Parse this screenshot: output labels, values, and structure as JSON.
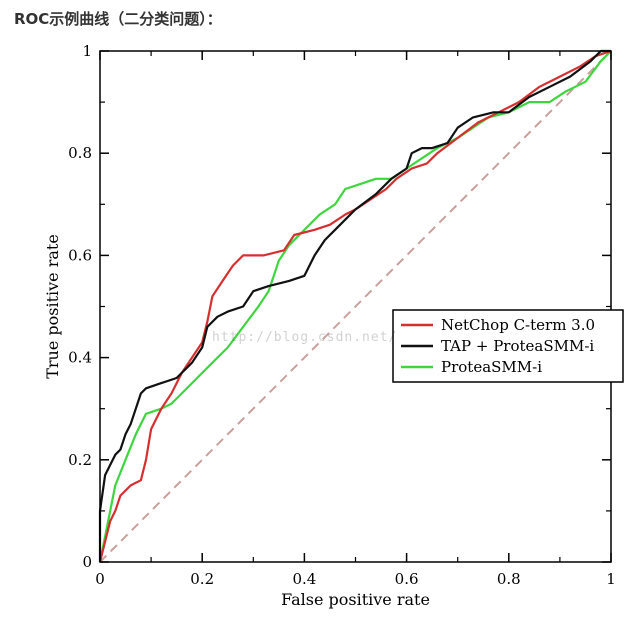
{
  "heading": "ROC示例曲线（二分类问题）：",
  "watermark": "http://blog.csdn.net/",
  "chart_data": {
    "type": "line",
    "title": "",
    "xlabel": "False positive rate",
    "ylabel": "True positive rate",
    "xlim": [
      0,
      1
    ],
    "ylim": [
      0,
      1
    ],
    "xticks": [
      0,
      0.2,
      0.4,
      0.6,
      0.8,
      1
    ],
    "yticks": [
      0,
      0.2,
      0.4,
      0.6,
      0.8,
      1
    ],
    "x_tick_labels": [
      "0",
      "0.2",
      "0.4",
      "0.6",
      "0.8",
      "1"
    ],
    "y_tick_labels": [
      "0",
      "0.2",
      "0.4",
      "0.6",
      "0.8",
      "1"
    ],
    "grid": false,
    "legend_position": "middle-right",
    "diagonal": {
      "color": "#c9a09c",
      "style": "dashed",
      "points": [
        [
          0,
          0
        ],
        [
          1,
          1
        ]
      ]
    },
    "series": [
      {
        "name": "NetChop C-term 3.0",
        "color": "#d62f2f",
        "points": [
          [
            0,
            0
          ],
          [
            0.01,
            0.04
          ],
          [
            0.02,
            0.08
          ],
          [
            0.03,
            0.1
          ],
          [
            0.04,
            0.13
          ],
          [
            0.06,
            0.15
          ],
          [
            0.08,
            0.16
          ],
          [
            0.09,
            0.2
          ],
          [
            0.1,
            0.26
          ],
          [
            0.12,
            0.3
          ],
          [
            0.14,
            0.33
          ],
          [
            0.16,
            0.37
          ],
          [
            0.18,
            0.4
          ],
          [
            0.2,
            0.43
          ],
          [
            0.21,
            0.47
          ],
          [
            0.22,
            0.52
          ],
          [
            0.24,
            0.55
          ],
          [
            0.26,
            0.58
          ],
          [
            0.28,
            0.6
          ],
          [
            0.32,
            0.6
          ],
          [
            0.36,
            0.61
          ],
          [
            0.38,
            0.64
          ],
          [
            0.42,
            0.65
          ],
          [
            0.45,
            0.66
          ],
          [
            0.48,
            0.68
          ],
          [
            0.5,
            0.69
          ],
          [
            0.53,
            0.71
          ],
          [
            0.56,
            0.73
          ],
          [
            0.58,
            0.75
          ],
          [
            0.61,
            0.77
          ],
          [
            0.64,
            0.78
          ],
          [
            0.66,
            0.8
          ],
          [
            0.7,
            0.83
          ],
          [
            0.74,
            0.86
          ],
          [
            0.78,
            0.88
          ],
          [
            0.82,
            0.9
          ],
          [
            0.86,
            0.93
          ],
          [
            0.9,
            0.95
          ],
          [
            0.94,
            0.97
          ],
          [
            0.97,
            0.99
          ],
          [
            1,
            1
          ]
        ]
      },
      {
        "name": "TAP + ProteaSMM-i",
        "color": "#111111",
        "points": [
          [
            0,
            0
          ],
          [
            0,
            0.1
          ],
          [
            0.01,
            0.17
          ],
          [
            0.02,
            0.19
          ],
          [
            0.03,
            0.21
          ],
          [
            0.04,
            0.22
          ],
          [
            0.05,
            0.25
          ],
          [
            0.06,
            0.27
          ],
          [
            0.07,
            0.3
          ],
          [
            0.08,
            0.33
          ],
          [
            0.09,
            0.34
          ],
          [
            0.12,
            0.35
          ],
          [
            0.15,
            0.36
          ],
          [
            0.18,
            0.39
          ],
          [
            0.2,
            0.42
          ],
          [
            0.21,
            0.46
          ],
          [
            0.23,
            0.48
          ],
          [
            0.25,
            0.49
          ],
          [
            0.28,
            0.5
          ],
          [
            0.3,
            0.53
          ],
          [
            0.33,
            0.54
          ],
          [
            0.37,
            0.55
          ],
          [
            0.4,
            0.56
          ],
          [
            0.42,
            0.6
          ],
          [
            0.44,
            0.63
          ],
          [
            0.46,
            0.65
          ],
          [
            0.5,
            0.69
          ],
          [
            0.54,
            0.72
          ],
          [
            0.57,
            0.75
          ],
          [
            0.6,
            0.77
          ],
          [
            0.61,
            0.8
          ],
          [
            0.63,
            0.81
          ],
          [
            0.65,
            0.81
          ],
          [
            0.68,
            0.82
          ],
          [
            0.7,
            0.85
          ],
          [
            0.73,
            0.87
          ],
          [
            0.77,
            0.88
          ],
          [
            0.8,
            0.88
          ],
          [
            0.84,
            0.91
          ],
          [
            0.88,
            0.93
          ],
          [
            0.92,
            0.95
          ],
          [
            0.96,
            0.98
          ],
          [
            0.98,
            1
          ],
          [
            1,
            1
          ]
        ]
      },
      {
        "name": "ProteaSMM-i",
        "color": "#3ed63e",
        "points": [
          [
            0,
            0
          ],
          [
            0.01,
            0.05
          ],
          [
            0.02,
            0.1
          ],
          [
            0.03,
            0.15
          ],
          [
            0.05,
            0.2
          ],
          [
            0.07,
            0.25
          ],
          [
            0.09,
            0.29
          ],
          [
            0.12,
            0.3
          ],
          [
            0.14,
            0.31
          ],
          [
            0.16,
            0.33
          ],
          [
            0.19,
            0.36
          ],
          [
            0.22,
            0.39
          ],
          [
            0.25,
            0.42
          ],
          [
            0.28,
            0.46
          ],
          [
            0.31,
            0.5
          ],
          [
            0.33,
            0.53
          ],
          [
            0.35,
            0.59
          ],
          [
            0.37,
            0.62
          ],
          [
            0.4,
            0.65
          ],
          [
            0.43,
            0.68
          ],
          [
            0.46,
            0.7
          ],
          [
            0.48,
            0.73
          ],
          [
            0.51,
            0.74
          ],
          [
            0.54,
            0.75
          ],
          [
            0.57,
            0.75
          ],
          [
            0.6,
            0.77
          ],
          [
            0.63,
            0.79
          ],
          [
            0.66,
            0.81
          ],
          [
            0.7,
            0.83
          ],
          [
            0.73,
            0.85
          ],
          [
            0.76,
            0.87
          ],
          [
            0.8,
            0.88
          ],
          [
            0.84,
            0.9
          ],
          [
            0.88,
            0.9
          ],
          [
            0.91,
            0.92
          ],
          [
            0.93,
            0.93
          ],
          [
            0.95,
            0.94
          ],
          [
            0.98,
            0.98
          ],
          [
            1,
            1
          ]
        ]
      }
    ]
  }
}
